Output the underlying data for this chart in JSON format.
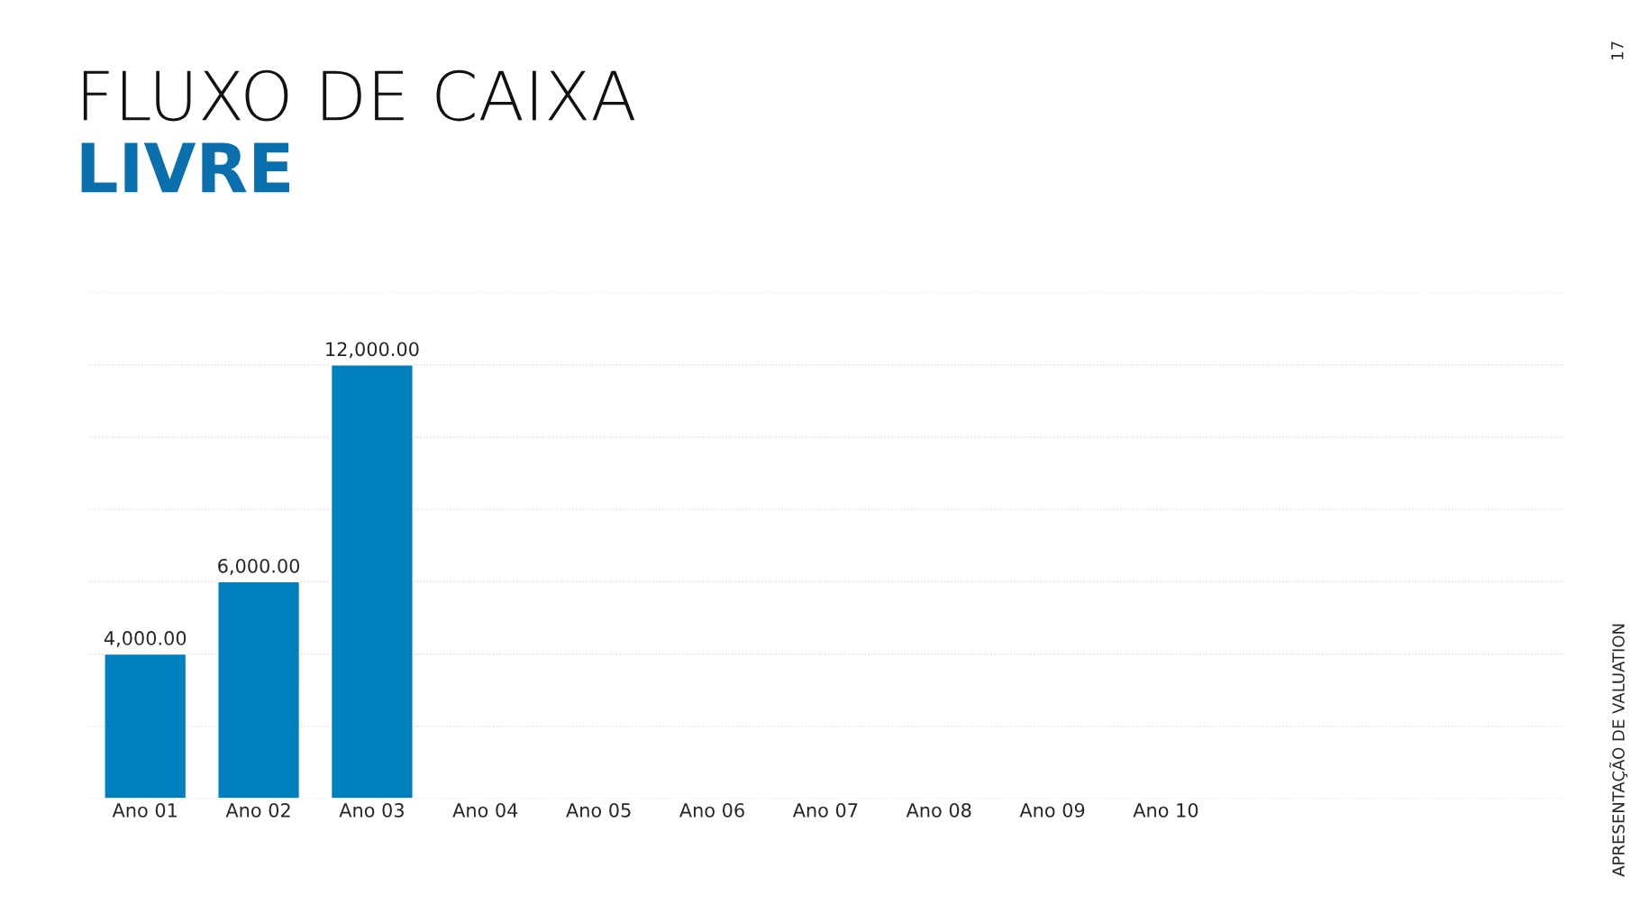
{
  "chart_data": {
    "type": "bar",
    "title": "FLUXO DE CAIXA",
    "subtitle": "LIVRE",
    "categories": [
      "Ano 01",
      "Ano 02",
      "Ano 03",
      "Ano 04",
      "Ano 05",
      "Ano 06",
      "Ano 07",
      "Ano 08",
      "Ano 09",
      "Ano 10",
      null,
      null,
      null
    ],
    "values": [
      4000,
      6000,
      12000,
      null,
      null,
      null,
      null,
      null,
      null,
      null,
      null,
      null,
      null
    ],
    "value_labels": [
      "4,000.00",
      "6,000.00",
      "12,000.00",
      null,
      null,
      null,
      null,
      null,
      null,
      null,
      null,
      null,
      null
    ],
    "color": "#0081bd",
    "ylim": [
      0,
      14000
    ],
    "yticks": [
      {
        "value": 0,
        "label": null
      },
      {
        "value": 2000,
        "label": null
      },
      {
        "value": 4000,
        "label": null
      },
      {
        "value": 6000,
        "label": null
      },
      {
        "value": 8000,
        "label": null
      },
      {
        "value": 10000,
        "label": null
      },
      {
        "value": 12000,
        "label": null
      },
      {
        "value": 14000,
        "label": null
      }
    ],
    "grid": "y",
    "tick_labels": "x",
    "annotations": [
      "17",
      "APRESENTAÇÃO DE VALUATION"
    ]
  }
}
